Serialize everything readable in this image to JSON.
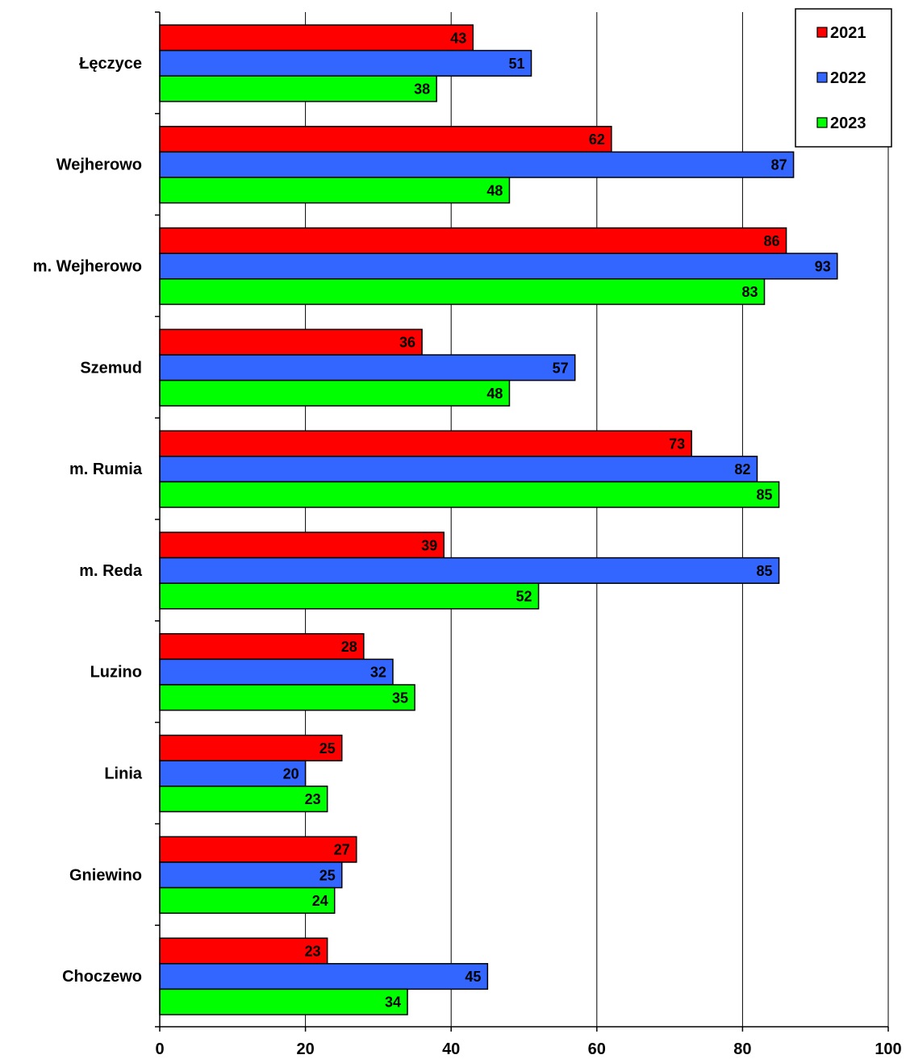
{
  "chart_data": {
    "type": "bar",
    "orientation": "horizontal",
    "title": "",
    "xlabel": "",
    "ylabel": "",
    "xlim": [
      0,
      100
    ],
    "x_ticks": [
      "0",
      "20",
      "40",
      "60",
      "80",
      "100"
    ],
    "grid": true,
    "legend": "top-right",
    "categories": [
      "Łęczyce",
      "Wejherowo",
      "m. Wejherowo",
      "Szemud",
      "m. Rumia",
      "m. Reda",
      "Luzino",
      "Linia",
      "Gniewino",
      "Choczewo"
    ],
    "series": [
      {
        "name": "2021",
        "color": "#ff0000",
        "values": [
          43,
          62,
          86,
          36,
          73,
          39,
          28,
          25,
          27,
          23
        ]
      },
      {
        "name": "2022",
        "color": "#3366ff",
        "values": [
          51,
          87,
          93,
          57,
          82,
          85,
          32,
          20,
          25,
          45
        ]
      },
      {
        "name": "2023",
        "color": "#00ff00",
        "values": [
          38,
          48,
          83,
          48,
          85,
          52,
          35,
          23,
          24,
          34
        ]
      }
    ]
  }
}
